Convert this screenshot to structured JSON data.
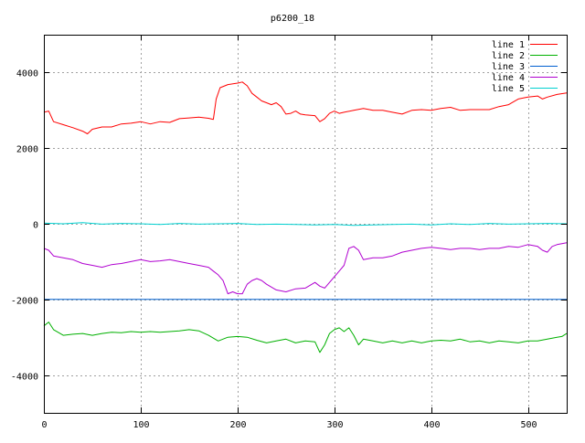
{
  "chart_data": {
    "type": "line",
    "title": "p6200_18",
    "xlabel": "",
    "ylabel": "",
    "xlim": [
      0,
      540
    ],
    "ylim": [
      -5000,
      5000
    ],
    "x_ticks": [
      0,
      100,
      200,
      300,
      400,
      500
    ],
    "y_ticks": [
      -4000,
      -2000,
      0,
      2000,
      4000
    ],
    "grid": true,
    "legend_position": "top-right",
    "series": [
      {
        "name": "line 1",
        "color": "#ff0000",
        "points": [
          [
            0,
            2950
          ],
          [
            5,
            2980
          ],
          [
            10,
            2700
          ],
          [
            20,
            2620
          ],
          [
            30,
            2540
          ],
          [
            40,
            2450
          ],
          [
            45,
            2380
          ],
          [
            50,
            2500
          ],
          [
            60,
            2560
          ],
          [
            70,
            2560
          ],
          [
            80,
            2640
          ],
          [
            90,
            2660
          ],
          [
            100,
            2700
          ],
          [
            110,
            2640
          ],
          [
            120,
            2700
          ],
          [
            130,
            2680
          ],
          [
            140,
            2780
          ],
          [
            150,
            2800
          ],
          [
            160,
            2820
          ],
          [
            170,
            2790
          ],
          [
            175,
            2760
          ],
          [
            178,
            3300
          ],
          [
            182,
            3600
          ],
          [
            190,
            3680
          ],
          [
            200,
            3720
          ],
          [
            205,
            3750
          ],
          [
            210,
            3650
          ],
          [
            215,
            3450
          ],
          [
            220,
            3350
          ],
          [
            225,
            3250
          ],
          [
            230,
            3200
          ],
          [
            235,
            3150
          ],
          [
            240,
            3200
          ],
          [
            245,
            3100
          ],
          [
            250,
            2900
          ],
          [
            255,
            2920
          ],
          [
            260,
            2980
          ],
          [
            265,
            2900
          ],
          [
            270,
            2880
          ],
          [
            280,
            2860
          ],
          [
            285,
            2700
          ],
          [
            290,
            2780
          ],
          [
            295,
            2920
          ],
          [
            300,
            2980
          ],
          [
            305,
            2920
          ],
          [
            310,
            2950
          ],
          [
            320,
            3000
          ],
          [
            330,
            3050
          ],
          [
            340,
            3000
          ],
          [
            350,
            3000
          ],
          [
            360,
            2950
          ],
          [
            370,
            2900
          ],
          [
            380,
            3000
          ],
          [
            390,
            3020
          ],
          [
            400,
            3000
          ],
          [
            410,
            3050
          ],
          [
            420,
            3080
          ],
          [
            430,
            3000
          ],
          [
            440,
            3020
          ],
          [
            450,
            3020
          ],
          [
            460,
            3020
          ],
          [
            470,
            3100
          ],
          [
            480,
            3150
          ],
          [
            490,
            3300
          ],
          [
            500,
            3350
          ],
          [
            510,
            3380
          ],
          [
            515,
            3300
          ],
          [
            520,
            3350
          ],
          [
            530,
            3420
          ],
          [
            540,
            3460
          ]
        ]
      },
      {
        "name": "line 2",
        "color": "#00b000",
        "points": [
          [
            0,
            -2700
          ],
          [
            5,
            -2600
          ],
          [
            10,
            -2800
          ],
          [
            20,
            -2950
          ],
          [
            30,
            -2920
          ],
          [
            40,
            -2900
          ],
          [
            50,
            -2950
          ],
          [
            60,
            -2900
          ],
          [
            70,
            -2870
          ],
          [
            80,
            -2880
          ],
          [
            90,
            -2850
          ],
          [
            100,
            -2870
          ],
          [
            110,
            -2850
          ],
          [
            120,
            -2870
          ],
          [
            130,
            -2850
          ],
          [
            140,
            -2830
          ],
          [
            150,
            -2800
          ],
          [
            160,
            -2830
          ],
          [
            170,
            -2950
          ],
          [
            180,
            -3100
          ],
          [
            190,
            -3000
          ],
          [
            200,
            -2980
          ],
          [
            210,
            -3000
          ],
          [
            220,
            -3080
          ],
          [
            230,
            -3150
          ],
          [
            240,
            -3100
          ],
          [
            250,
            -3050
          ],
          [
            260,
            -3150
          ],
          [
            270,
            -3100
          ],
          [
            280,
            -3120
          ],
          [
            285,
            -3400
          ],
          [
            290,
            -3200
          ],
          [
            295,
            -2900
          ],
          [
            300,
            -2800
          ],
          [
            305,
            -2750
          ],
          [
            310,
            -2850
          ],
          [
            315,
            -2750
          ],
          [
            320,
            -2950
          ],
          [
            325,
            -3200
          ],
          [
            330,
            -3050
          ],
          [
            340,
            -3100
          ],
          [
            350,
            -3150
          ],
          [
            360,
            -3100
          ],
          [
            370,
            -3150
          ],
          [
            380,
            -3100
          ],
          [
            390,
            -3150
          ],
          [
            400,
            -3100
          ],
          [
            410,
            -3080
          ],
          [
            420,
            -3100
          ],
          [
            430,
            -3050
          ],
          [
            440,
            -3120
          ],
          [
            450,
            -3100
          ],
          [
            460,
            -3150
          ],
          [
            470,
            -3100
          ],
          [
            480,
            -3120
          ],
          [
            490,
            -3150
          ],
          [
            500,
            -3100
          ],
          [
            510,
            -3100
          ],
          [
            520,
            -3050
          ],
          [
            530,
            -3000
          ],
          [
            535,
            -2980
          ],
          [
            540,
            -2900
          ]
        ]
      },
      {
        "name": "line 3",
        "color": "#0060d0",
        "points": [
          [
            0,
            -2000
          ],
          [
            540,
            -2000
          ]
        ]
      },
      {
        "name": "line 4",
        "color": "#b000d0",
        "points": [
          [
            0,
            -650
          ],
          [
            5,
            -700
          ],
          [
            10,
            -850
          ],
          [
            20,
            -900
          ],
          [
            30,
            -950
          ],
          [
            40,
            -1050
          ],
          [
            50,
            -1100
          ],
          [
            60,
            -1150
          ],
          [
            70,
            -1080
          ],
          [
            80,
            -1050
          ],
          [
            90,
            -1000
          ],
          [
            100,
            -950
          ],
          [
            110,
            -1000
          ],
          [
            120,
            -980
          ],
          [
            130,
            -950
          ],
          [
            140,
            -1000
          ],
          [
            150,
            -1050
          ],
          [
            160,
            -1100
          ],
          [
            170,
            -1150
          ],
          [
            175,
            -1250
          ],
          [
            180,
            -1350
          ],
          [
            185,
            -1500
          ],
          [
            190,
            -1850
          ],
          [
            195,
            -1800
          ],
          [
            200,
            -1850
          ],
          [
            205,
            -1850
          ],
          [
            210,
            -1600
          ],
          [
            215,
            -1500
          ],
          [
            220,
            -1450
          ],
          [
            225,
            -1500
          ],
          [
            230,
            -1600
          ],
          [
            240,
            -1750
          ],
          [
            250,
            -1800
          ],
          [
            260,
            -1720
          ],
          [
            270,
            -1700
          ],
          [
            280,
            -1550
          ],
          [
            285,
            -1650
          ],
          [
            290,
            -1700
          ],
          [
            295,
            -1550
          ],
          [
            300,
            -1400
          ],
          [
            305,
            -1250
          ],
          [
            310,
            -1100
          ],
          [
            315,
            -650
          ],
          [
            320,
            -600
          ],
          [
            325,
            -700
          ],
          [
            330,
            -950
          ],
          [
            340,
            -900
          ],
          [
            350,
            -900
          ],
          [
            360,
            -850
          ],
          [
            370,
            -750
          ],
          [
            380,
            -700
          ],
          [
            390,
            -650
          ],
          [
            400,
            -620
          ],
          [
            410,
            -650
          ],
          [
            420,
            -680
          ],
          [
            430,
            -650
          ],
          [
            440,
            -650
          ],
          [
            450,
            -680
          ],
          [
            460,
            -650
          ],
          [
            470,
            -650
          ],
          [
            480,
            -600
          ],
          [
            490,
            -620
          ],
          [
            500,
            -550
          ],
          [
            510,
            -600
          ],
          [
            515,
            -700
          ],
          [
            520,
            -750
          ],
          [
            525,
            -600
          ],
          [
            530,
            -550
          ],
          [
            540,
            -500
          ]
        ]
      },
      {
        "name": "line 5",
        "color": "#00d0d0",
        "points": [
          [
            0,
            20
          ],
          [
            20,
            0
          ],
          [
            40,
            30
          ],
          [
            60,
            -10
          ],
          [
            80,
            10
          ],
          [
            100,
            0
          ],
          [
            120,
            -20
          ],
          [
            140,
            10
          ],
          [
            160,
            -10
          ],
          [
            180,
            0
          ],
          [
            200,
            10
          ],
          [
            220,
            -20
          ],
          [
            240,
            -10
          ],
          [
            260,
            -20
          ],
          [
            280,
            -30
          ],
          [
            300,
            -20
          ],
          [
            320,
            -40
          ],
          [
            340,
            -30
          ],
          [
            360,
            -20
          ],
          [
            380,
            -10
          ],
          [
            400,
            -30
          ],
          [
            420,
            0
          ],
          [
            440,
            -20
          ],
          [
            460,
            10
          ],
          [
            480,
            -10
          ],
          [
            500,
            0
          ],
          [
            520,
            10
          ],
          [
            540,
            0
          ]
        ]
      }
    ]
  }
}
